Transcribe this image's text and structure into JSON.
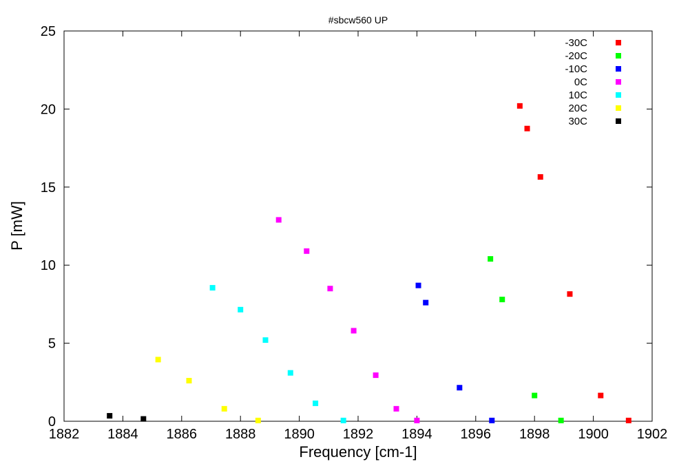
{
  "chart_data": {
    "type": "scatter",
    "title": "#sbcw560 UP",
    "xlabel": "Frequency [cm-1]",
    "ylabel": "P [mW]",
    "xlim": [
      1882,
      1902
    ],
    "ylim": [
      0,
      25
    ],
    "xticks": [
      1882,
      1884,
      1886,
      1888,
      1890,
      1892,
      1894,
      1896,
      1898,
      1900,
      1902
    ],
    "yticks": [
      0,
      5,
      10,
      15,
      20,
      25
    ],
    "grid": false,
    "legend_position": "top-right",
    "series": [
      {
        "name": "-30C",
        "color": "#ff0000",
        "points": [
          [
            1897.5,
            20.2
          ],
          [
            1897.75,
            18.75
          ],
          [
            1898.2,
            15.65
          ],
          [
            1899.2,
            8.15
          ],
          [
            1900.25,
            1.65
          ],
          [
            1901.2,
            0.05
          ]
        ]
      },
      {
        "name": "-20C",
        "color": "#00ff00",
        "points": [
          [
            1896.5,
            10.4
          ],
          [
            1896.9,
            7.8
          ],
          [
            1898.0,
            1.65
          ],
          [
            1898.9,
            0.05
          ]
        ]
      },
      {
        "name": "-10C",
        "color": "#0000ff",
        "points": [
          [
            1894.05,
            8.7
          ],
          [
            1894.3,
            7.6
          ],
          [
            1895.45,
            2.15
          ],
          [
            1896.55,
            0.05
          ]
        ]
      },
      {
        "name": "0C",
        "color": "#ff00ff",
        "points": [
          [
            1889.3,
            12.9
          ],
          [
            1890.25,
            10.9
          ],
          [
            1891.05,
            8.5
          ],
          [
            1891.85,
            5.8
          ],
          [
            1892.6,
            2.95
          ],
          [
            1893.3,
            0.8
          ],
          [
            1894.0,
            0.05
          ]
        ]
      },
      {
        "name": "10C",
        "color": "#00ffff",
        "points": [
          [
            1887.05,
            8.55
          ],
          [
            1888.0,
            7.15
          ],
          [
            1888.85,
            5.2
          ],
          [
            1889.7,
            3.1
          ],
          [
            1890.55,
            1.15
          ],
          [
            1891.5,
            0.05
          ]
        ]
      },
      {
        "name": "20C",
        "color": "#ffff00",
        "points": [
          [
            1885.2,
            3.95
          ],
          [
            1886.25,
            2.6
          ],
          [
            1887.45,
            0.8
          ],
          [
            1888.6,
            0.05
          ]
        ]
      },
      {
        "name": "30C",
        "color": "#000000",
        "points": [
          [
            1883.55,
            0.35
          ],
          [
            1884.7,
            0.15
          ]
        ]
      }
    ]
  }
}
